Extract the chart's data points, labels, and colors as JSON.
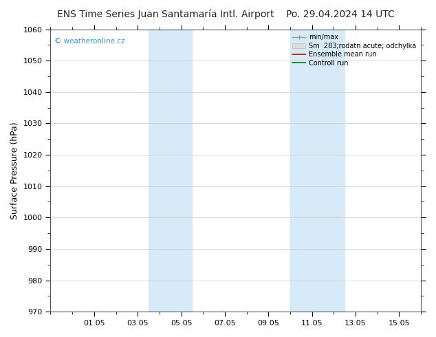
{
  "title_left": "ENS Time Series Juan Santamaría Intl. Airport",
  "title_right": "Po. 29.04.2024 14 UTC",
  "ylabel": "Surface Pressure (hPa)",
  "ylim": [
    970,
    1060
  ],
  "yticks": [
    970,
    980,
    990,
    1000,
    1010,
    1020,
    1030,
    1040,
    1050,
    1060
  ],
  "xlim": [
    0,
    17
  ],
  "xtick_labels": [
    "01.05",
    "03.05",
    "05.05",
    "07.05",
    "09.05",
    "11.05",
    "13.05",
    "15.05"
  ],
  "xtick_positions": [
    2,
    4,
    6,
    8,
    10,
    12,
    14,
    16
  ],
  "shade_bands": [
    {
      "x_start": 4.5,
      "x_end": 5.5
    },
    {
      "x_start": 5.5,
      "x_end": 6.5
    },
    {
      "x_start": 11.0,
      "x_end": 12.0
    },
    {
      "x_start": 12.0,
      "x_end": 13.5
    }
  ],
  "shade_color": "#d6eaf7",
  "watermark": "© weatheronline.cz",
  "watermark_color": "#3399cc",
  "legend_labels": [
    "min/max",
    "Sm  283;rodatn acute; odchylka",
    "Ensemble mean run",
    "Controll run"
  ],
  "background_color": "#ffffff",
  "grid_color": "#cccccc",
  "title_fontsize": 10,
  "axis_fontsize": 9,
  "tick_fontsize": 8
}
